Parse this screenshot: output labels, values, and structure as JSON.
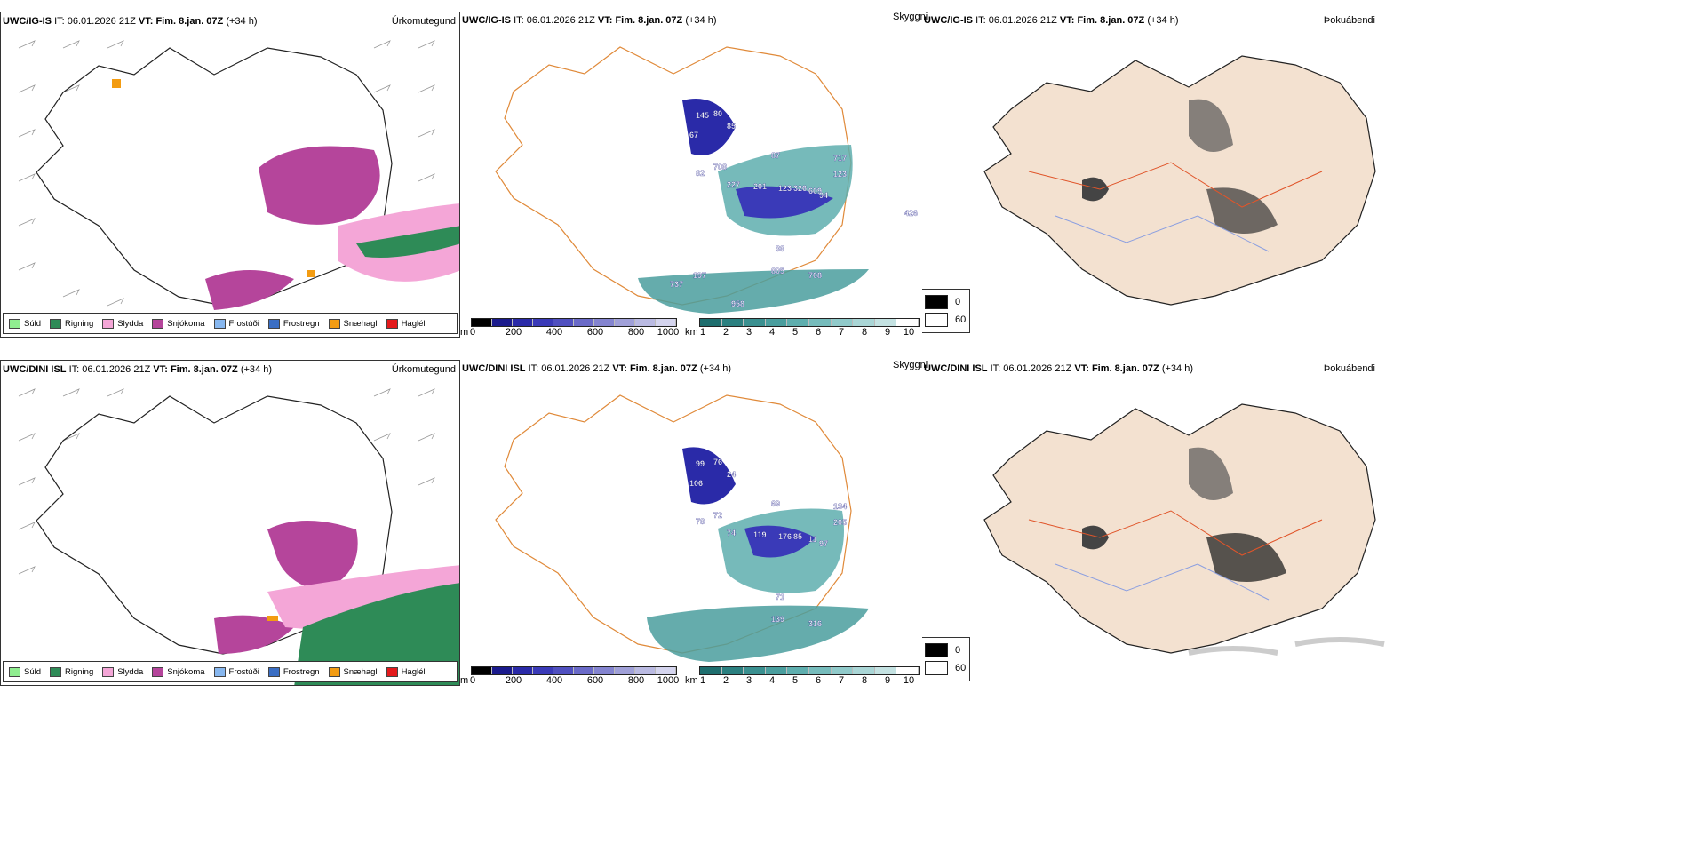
{
  "rows": [
    {
      "model": "UWC/IG-IS",
      "it_label": "IT:",
      "it_value": "06.01.2026 21Z",
      "vt_label": "VT:",
      "vt_value": "Fim. 8.jan. 07Z",
      "lead": "(+34 h)"
    },
    {
      "model": "UWC/DINI ISL",
      "it_label": "IT:",
      "it_value": "06.01.2026 21Z",
      "vt_label": "VT:",
      "vt_value": "Fim. 8.jan. 07Z",
      "lead": "(+34 h)"
    }
  ],
  "panel_titles": {
    "precip": "Úrkomutegund",
    "visibility": "Skyggni",
    "fog": "Þokuábendi"
  },
  "precip_legend": [
    {
      "label": "Súld",
      "color": "#90ee90"
    },
    {
      "label": "Rigning",
      "color": "#2e8b57"
    },
    {
      "label": "Slydda",
      "color": "#f4a6d7"
    },
    {
      "label": "Snjókoma",
      "color": "#b5459b"
    },
    {
      "label": "Frostúði",
      "color": "#87b7ef"
    },
    {
      "label": "Frostregn",
      "color": "#3a6ec4"
    },
    {
      "label": "Snæhagl",
      "color": "#f39c12"
    },
    {
      "label": "Haglél",
      "color": "#e31a1c"
    }
  ],
  "cloud_base_bar": {
    "unit": "m",
    "ticks": [
      "0",
      "200",
      "400",
      "600",
      "800",
      "1000"
    ],
    "colors": [
      "#000000",
      "#1a1a8c",
      "#2a2aa8",
      "#3a3ab8",
      "#5050c0",
      "#6a6ac8",
      "#8484d0",
      "#a0a0d8",
      "#babae2",
      "#d4d4ee"
    ]
  },
  "visibility_bar": {
    "unit": "km",
    "ticks": [
      "1",
      "2",
      "3",
      "4",
      "5",
      "6",
      "7",
      "8",
      "9",
      "10"
    ],
    "colors": [
      "#1e6e6e",
      "#2b8080",
      "#3a9090",
      "#4a9e9e",
      "#5eaeae",
      "#76bcbc",
      "#90caca",
      "#aad6d6",
      "#c4e2e2",
      "#ffffff"
    ]
  },
  "fog_legend": {
    "dark_label": "0",
    "light_label": "60"
  },
  "cloud_labels_row1": [
    "145",
    "80",
    "67",
    "85",
    "708",
    "82",
    "227",
    "201",
    "123",
    "326",
    "609",
    "87",
    "717",
    "123",
    "94",
    "38",
    "805",
    "708",
    "737",
    "197",
    "958",
    "426"
  ],
  "cloud_labels_row2": [
    "99",
    "76",
    "106",
    "24",
    "72",
    "78",
    "74",
    "119",
    "176",
    "85",
    "11",
    "69",
    "134",
    "205",
    "97",
    "71",
    "139",
    "316"
  ]
}
